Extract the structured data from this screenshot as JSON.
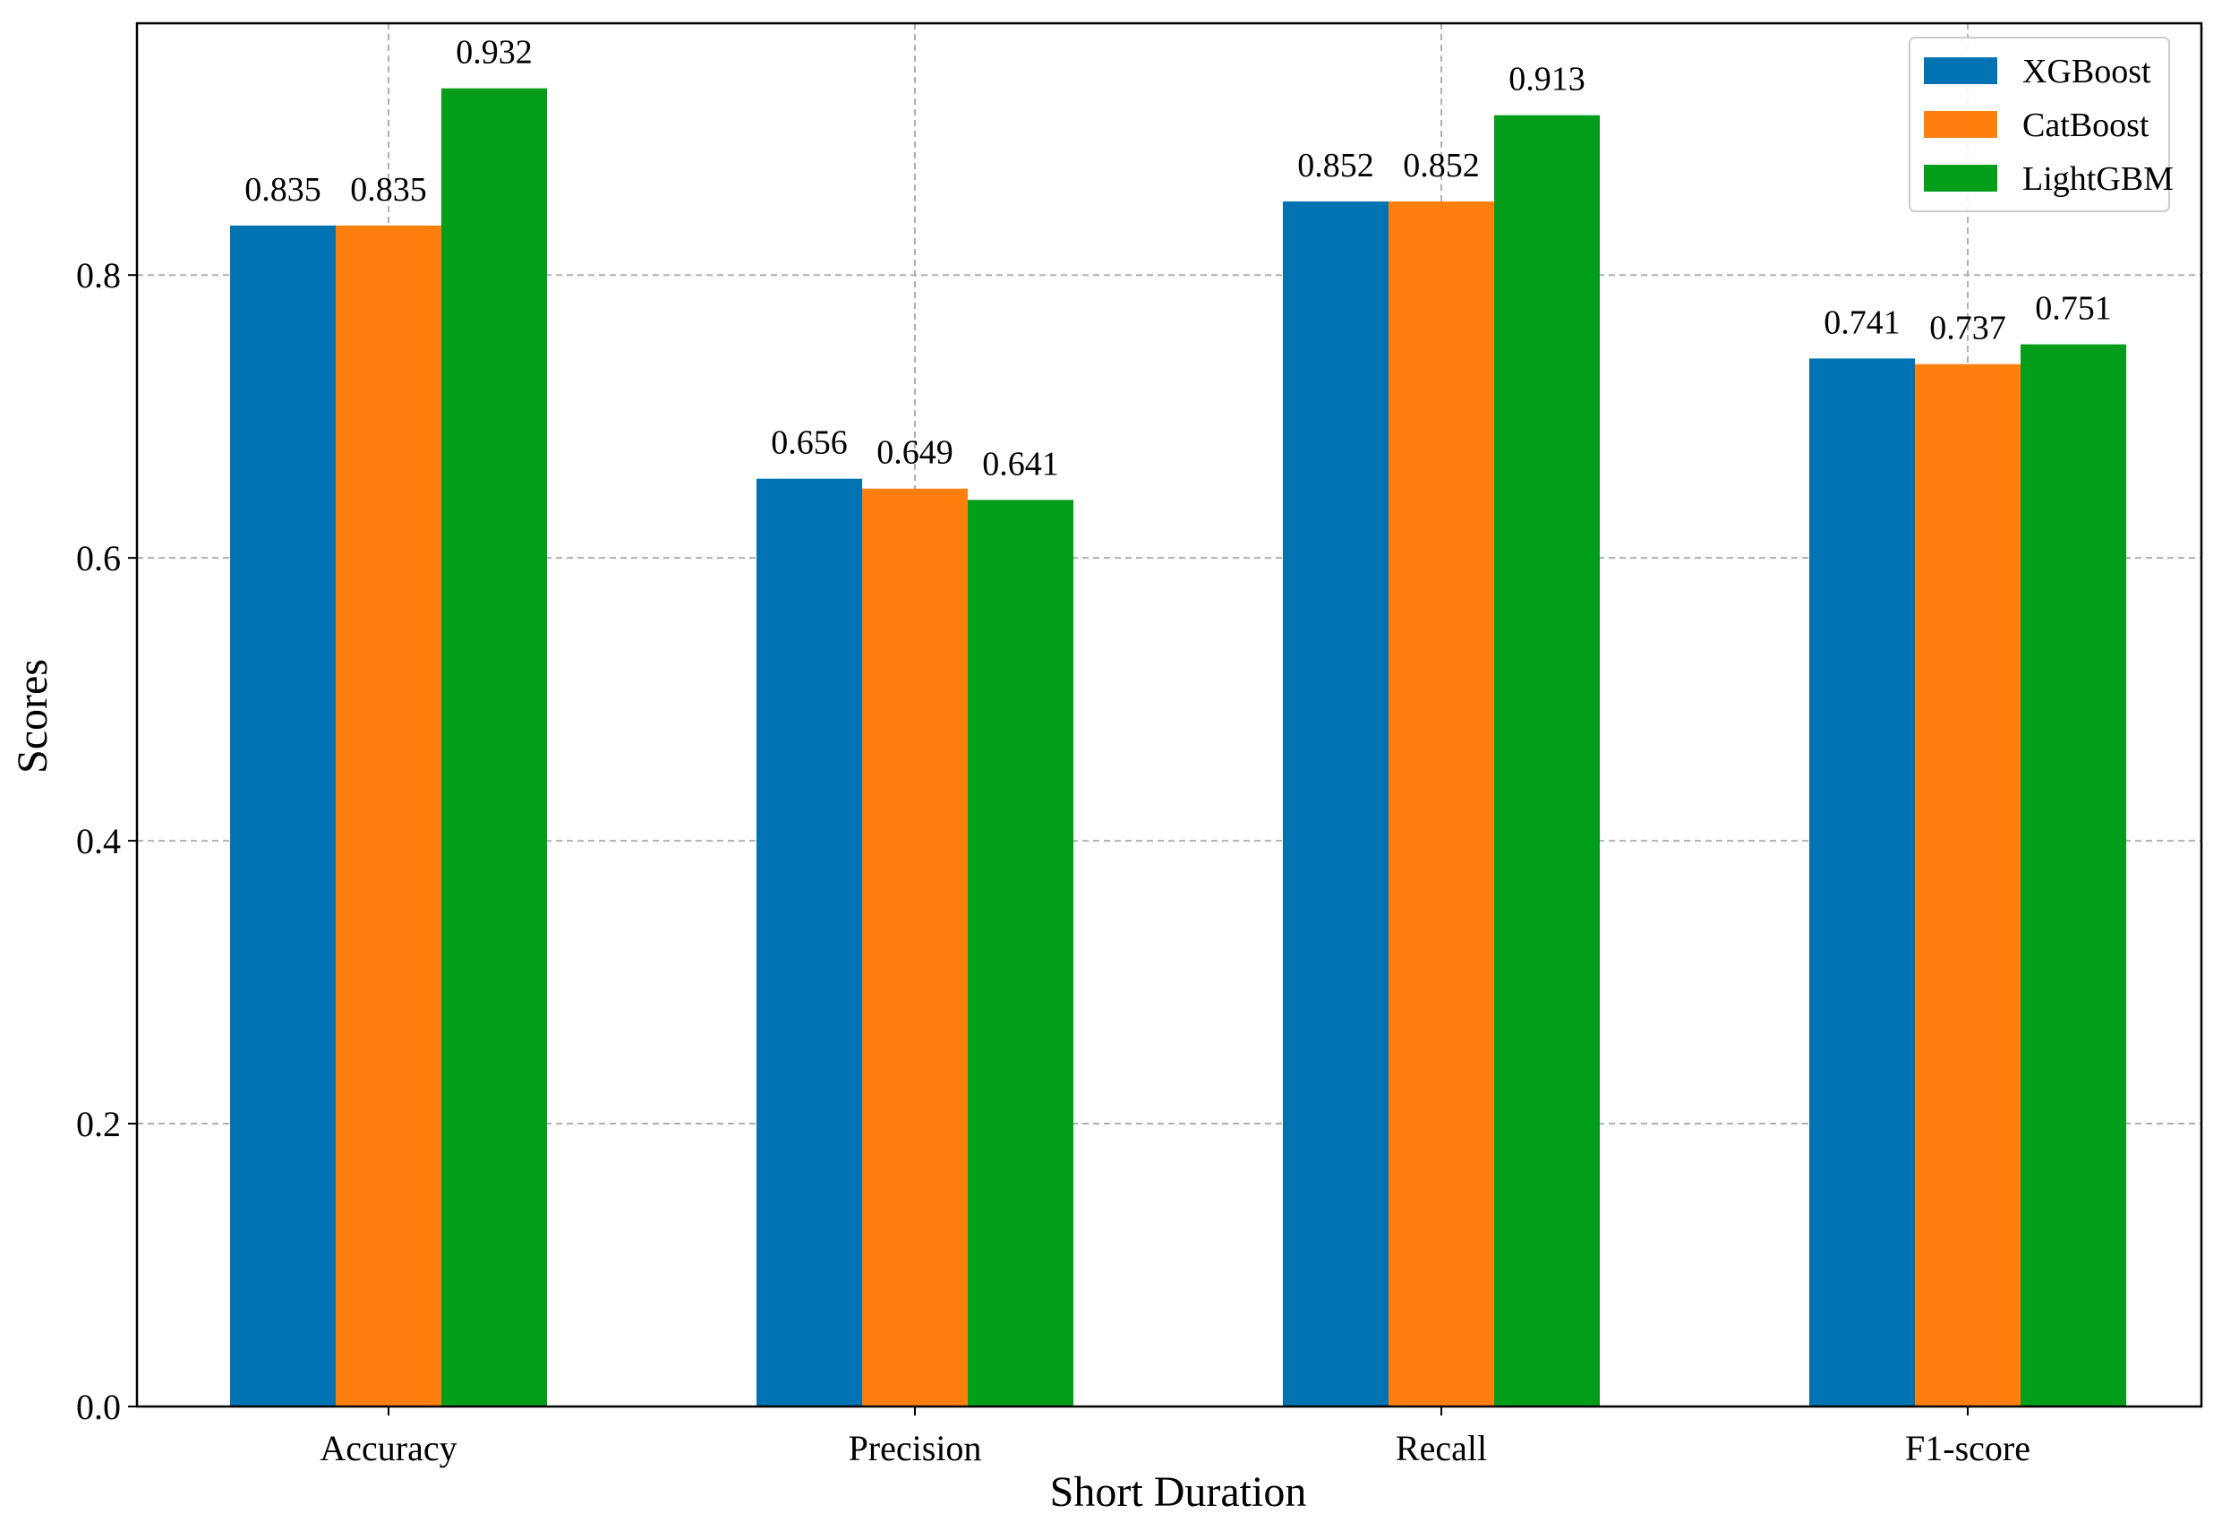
{
  "chart_data": {
    "type": "bar",
    "title": "",
    "xlabel": "Short Duration",
    "ylabel": "Scores",
    "categories": [
      "Accuracy",
      "Precision",
      "Recall",
      "F1-score"
    ],
    "series": [
      {
        "name": "XGBoost",
        "color": "#0173b2",
        "values": [
          0.835,
          0.656,
          0.852,
          0.741
        ],
        "labels": [
          "0.835",
          "0.656",
          "0.852",
          "0.741"
        ]
      },
      {
        "name": "CatBoost",
        "color": "#ff7f0e",
        "values": [
          0.835,
          0.649,
          0.852,
          0.737
        ],
        "labels": [
          "0.835",
          "0.649",
          "0.852",
          "0.737"
        ]
      },
      {
        "name": "LightGBM",
        "color": "#029e1a",
        "values": [
          0.932,
          0.641,
          0.913,
          0.751
        ],
        "labels": [
          "0.932",
          "0.641",
          "0.913",
          "0.751"
        ]
      }
    ],
    "ylim": [
      0,
      0.978
    ],
    "yticks": [
      0.0,
      0.2,
      0.4,
      0.6,
      0.8
    ],
    "ytick_labels": [
      "0.0",
      "0.2",
      "0.4",
      "0.6",
      "0.8"
    ],
    "grid": true,
    "legend_position": "top-right"
  }
}
